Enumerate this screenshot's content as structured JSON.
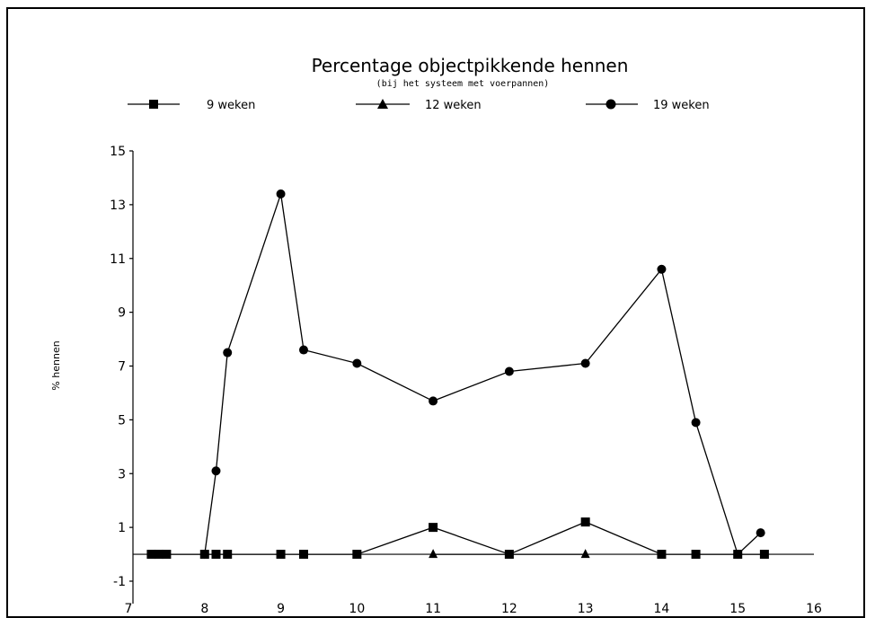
{
  "chart_data": {
    "type": "line",
    "title": "Percentage objectpikkende hennen",
    "subtitle": "(bij het systeem met voerpannen)",
    "xlabel": "",
    "ylabel": "% hennen",
    "xlim": [
      7,
      16
    ],
    "ylim": [
      -1,
      15
    ],
    "x_ticks": [
      "7",
      "8",
      "9",
      "10",
      "11",
      "12",
      "13",
      "14",
      "15",
      "16"
    ],
    "y_ticks": [
      "15",
      "13",
      "11",
      "9",
      "7",
      "5",
      "3",
      "1",
      "-1"
    ],
    "legend_position": "top",
    "series": [
      {
        "name": "9 weken",
        "marker": "square",
        "points": [
          [
            7.3,
            0
          ],
          [
            7.4,
            0
          ],
          [
            7.5,
            0
          ],
          [
            8.0,
            0
          ],
          [
            8.15,
            0
          ],
          [
            8.3,
            0
          ],
          [
            9.0,
            0
          ],
          [
            9.3,
            0
          ],
          [
            10.0,
            0
          ],
          [
            11.0,
            1.0
          ],
          [
            12.0,
            0
          ],
          [
            13.0,
            1.2
          ],
          [
            14.0,
            0
          ],
          [
            14.45,
            0
          ],
          [
            15.0,
            0
          ],
          [
            15.35,
            0
          ]
        ]
      },
      {
        "name": "12 weken",
        "marker": "triangle",
        "points": [
          [
            11.0,
            0
          ],
          [
            13.0,
            0
          ]
        ]
      },
      {
        "name": "19 weken",
        "marker": "circle",
        "points": [
          [
            8.0,
            0
          ],
          [
            8.15,
            3.1
          ],
          [
            8.3,
            7.5
          ],
          [
            9.0,
            13.4
          ],
          [
            9.3,
            7.6
          ],
          [
            10.0,
            7.1
          ],
          [
            11.0,
            5.7
          ],
          [
            12.0,
            6.8
          ],
          [
            13.0,
            7.1
          ],
          [
            14.0,
            10.6
          ],
          [
            14.45,
            4.9
          ],
          [
            15.0,
            0
          ],
          [
            15.3,
            0.8
          ]
        ]
      }
    ]
  }
}
